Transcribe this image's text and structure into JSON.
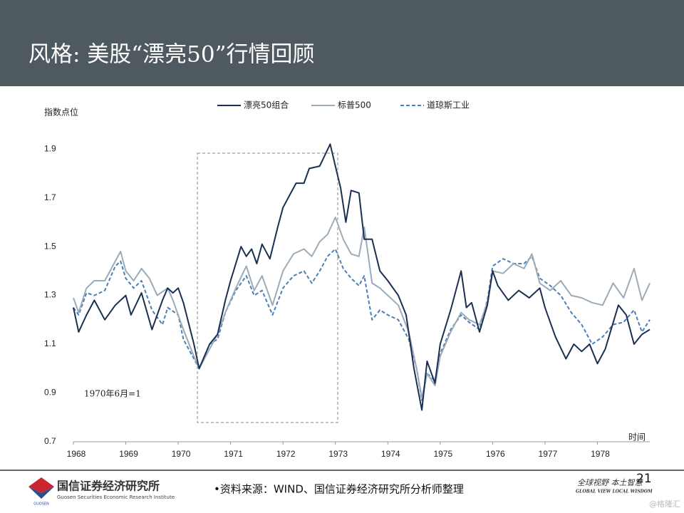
{
  "slide": {
    "title": "风格: 美股“漂亮50”行情回顾",
    "source": "•资料来源：WIND、国信证券经济研究所分析师整理",
    "page_number": "21",
    "logo_name": "国信证券经济研究所",
    "logo_english": "Guosen Securities Economic Research Institute",
    "logo_mark": "GUOSEN",
    "slogan": "全球视野  本土智慧",
    "slogan_english": "GLOBAL VIEW   LOCAL WISDOM",
    "watermark": "@格隆汇"
  },
  "chart_data": {
    "type": "line",
    "y_label": "指数点位",
    "x_label": "时间",
    "annotation": "1970年6月=1",
    "xlim": [
      1968,
      1979
    ],
    "xticks": [
      1968,
      1969,
      1970,
      1971,
      1972,
      1973,
      1974,
      1975,
      1976,
      1977,
      1978
    ],
    "ylim": [
      0.7,
      1.95
    ],
    "yticks": [
      0.7,
      0.9,
      1.1,
      1.3,
      1.5,
      1.7,
      1.9
    ],
    "grid": false,
    "legend": "top",
    "series": [
      {
        "name": "漂亮50组合",
        "color": "#1b2f52",
        "linestyle": "solid",
        "x": [
          1968.0,
          1968.1,
          1968.25,
          1968.4,
          1968.6,
          1968.8,
          1969.0,
          1969.1,
          1969.3,
          1969.5,
          1969.7,
          1969.8,
          1969.9,
          1970.0,
          1970.1,
          1970.3,
          1970.4,
          1970.6,
          1970.75,
          1970.9,
          1971.0,
          1971.2,
          1971.3,
          1971.4,
          1971.5,
          1971.6,
          1971.75,
          1971.9,
          1972.0,
          1972.1,
          1972.25,
          1972.4,
          1972.5,
          1972.7,
          1972.9,
          1973.0,
          1973.1,
          1973.2,
          1973.3,
          1973.45,
          1973.55,
          1973.7,
          1973.85,
          1974.0,
          1974.2,
          1974.35,
          1974.5,
          1974.65,
          1974.75,
          1974.9,
          1975.0,
          1975.2,
          1975.4,
          1975.5,
          1975.6,
          1975.75,
          1975.9,
          1976.0,
          1976.1,
          1976.3,
          1976.5,
          1976.7,
          1976.9,
          1977.0,
          1977.2,
          1977.4,
          1977.55,
          1977.7,
          1977.85,
          1978.0,
          1978.15,
          1978.4,
          1978.55,
          1978.7,
          1978.85,
          1979.0
        ],
        "values": [
          1.25,
          1.15,
          1.22,
          1.28,
          1.2,
          1.26,
          1.3,
          1.22,
          1.31,
          1.16,
          1.28,
          1.33,
          1.31,
          1.33,
          1.27,
          1.1,
          1.0,
          1.1,
          1.14,
          1.28,
          1.36,
          1.5,
          1.46,
          1.49,
          1.43,
          1.51,
          1.45,
          1.58,
          1.66,
          1.7,
          1.76,
          1.76,
          1.82,
          1.83,
          1.92,
          1.83,
          1.74,
          1.6,
          1.73,
          1.72,
          1.53,
          1.53,
          1.4,
          1.36,
          1.3,
          1.22,
          1.0,
          0.83,
          1.03,
          0.94,
          1.1,
          1.24,
          1.4,
          1.25,
          1.27,
          1.15,
          1.26,
          1.4,
          1.34,
          1.28,
          1.32,
          1.29,
          1.33,
          1.25,
          1.13,
          1.04,
          1.1,
          1.07,
          1.1,
          1.02,
          1.08,
          1.26,
          1.22,
          1.1,
          1.14,
          1.16
        ]
      },
      {
        "name": "标普500",
        "color": "#9aabb9",
        "linestyle": "solid",
        "x": [
          1968.0,
          1968.1,
          1968.25,
          1968.4,
          1968.6,
          1968.8,
          1968.9,
          1969.0,
          1969.15,
          1969.3,
          1969.45,
          1969.6,
          1969.8,
          1969.9,
          1970.1,
          1970.3,
          1970.4,
          1970.6,
          1970.75,
          1970.9,
          1971.1,
          1971.3,
          1971.45,
          1971.6,
          1971.8,
          1972.0,
          1972.2,
          1972.4,
          1972.55,
          1972.7,
          1972.85,
          1973.0,
          1973.15,
          1973.3,
          1973.45,
          1973.55,
          1973.7,
          1973.85,
          1974.0,
          1974.2,
          1974.4,
          1974.55,
          1974.65,
          1974.75,
          1974.9,
          1975.0,
          1975.2,
          1975.4,
          1975.55,
          1975.75,
          1975.9,
          1976.0,
          1976.2,
          1976.4,
          1976.6,
          1976.75,
          1976.9,
          1977.1,
          1977.3,
          1977.5,
          1977.7,
          1977.9,
          1978.1,
          1978.3,
          1978.5,
          1978.7,
          1978.85,
          1979.0
        ],
        "values": [
          1.29,
          1.23,
          1.33,
          1.36,
          1.36,
          1.44,
          1.48,
          1.4,
          1.36,
          1.41,
          1.37,
          1.3,
          1.33,
          1.28,
          1.16,
          1.05,
          1.0,
          1.08,
          1.14,
          1.23,
          1.33,
          1.42,
          1.32,
          1.38,
          1.26,
          1.4,
          1.47,
          1.49,
          1.46,
          1.52,
          1.55,
          1.62,
          1.53,
          1.47,
          1.46,
          1.58,
          1.35,
          1.33,
          1.3,
          1.26,
          1.15,
          1.0,
          0.88,
          0.98,
          0.93,
          1.05,
          1.15,
          1.23,
          1.2,
          1.18,
          1.27,
          1.4,
          1.39,
          1.43,
          1.41,
          1.47,
          1.35,
          1.32,
          1.36,
          1.3,
          1.29,
          1.27,
          1.26,
          1.35,
          1.29,
          1.41,
          1.28,
          1.35
        ]
      },
      {
        "name": "道琼斯工业",
        "color": "#4a7fb5",
        "linestyle": "dashed",
        "x": [
          1968.0,
          1968.1,
          1968.25,
          1968.4,
          1968.6,
          1968.8,
          1968.9,
          1969.0,
          1969.15,
          1969.3,
          1969.5,
          1969.7,
          1969.8,
          1970.0,
          1970.1,
          1970.3,
          1970.4,
          1970.6,
          1970.75,
          1970.9,
          1971.1,
          1971.3,
          1971.45,
          1971.6,
          1971.8,
          1972.0,
          1972.2,
          1972.4,
          1972.55,
          1972.7,
          1972.85,
          1973.0,
          1973.15,
          1973.3,
          1973.45,
          1973.55,
          1973.7,
          1973.85,
          1974.0,
          1974.2,
          1974.4,
          1974.55,
          1974.65,
          1974.75,
          1974.9,
          1975.0,
          1975.2,
          1975.4,
          1975.55,
          1975.75,
          1975.9,
          1976.0,
          1976.2,
          1976.4,
          1976.6,
          1976.75,
          1976.9,
          1977.1,
          1977.3,
          1977.5,
          1977.7,
          1977.9,
          1978.1,
          1978.3,
          1978.5,
          1978.7,
          1978.85,
          1979.0
        ],
        "values": [
          1.25,
          1.22,
          1.31,
          1.3,
          1.32,
          1.42,
          1.44,
          1.37,
          1.33,
          1.36,
          1.24,
          1.18,
          1.25,
          1.22,
          1.12,
          1.04,
          1.0,
          1.1,
          1.12,
          1.23,
          1.32,
          1.38,
          1.3,
          1.32,
          1.22,
          1.33,
          1.38,
          1.4,
          1.35,
          1.4,
          1.46,
          1.49,
          1.41,
          1.37,
          1.34,
          1.38,
          1.2,
          1.24,
          1.22,
          1.2,
          1.12,
          1.0,
          0.87,
          0.98,
          0.95,
          1.06,
          1.16,
          1.22,
          1.19,
          1.16,
          1.28,
          1.42,
          1.45,
          1.43,
          1.43,
          1.46,
          1.37,
          1.34,
          1.3,
          1.23,
          1.18,
          1.1,
          1.13,
          1.18,
          1.19,
          1.24,
          1.15,
          1.2
        ]
      }
    ]
  }
}
